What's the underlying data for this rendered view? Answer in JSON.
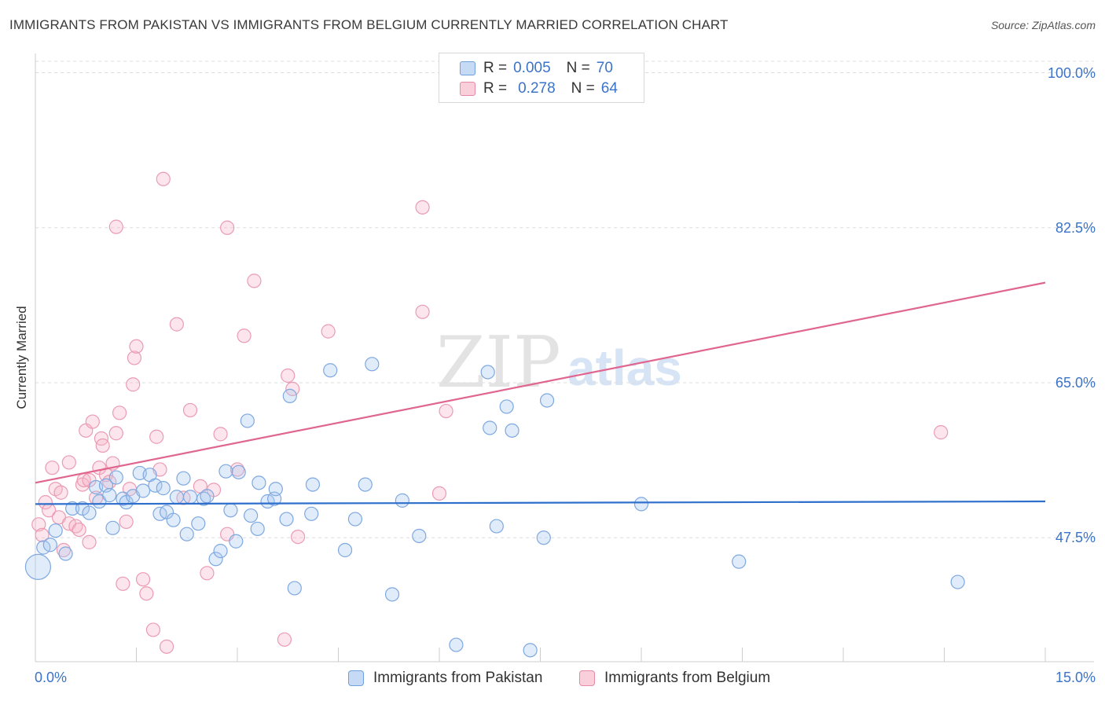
{
  "chart_data": {
    "type": "scatter",
    "title": "IMMIGRANTS FROM PAKISTAN VS IMMIGRANTS FROM BELGIUM CURRENTLY MARRIED CORRELATION CHART",
    "source": "Source: ZipAtlas.com",
    "xlabel": "",
    "ylabel": "Currently Married",
    "xlim": [
      0,
      15
    ],
    "ylim": [
      33.5,
      102
    ],
    "x_tick_labels": {
      "min": "0.0%",
      "max": "15.0%"
    },
    "y_ticks": [
      {
        "value": 100,
        "label": "100.0%"
      },
      {
        "value": 82.5,
        "label": "82.5%"
      },
      {
        "value": 65,
        "label": "65.0%"
      },
      {
        "value": 47.5,
        "label": "47.5%"
      }
    ],
    "watermark": {
      "part1": "ZIP",
      "part2": "atlas"
    },
    "legend": {
      "r_label": "R =",
      "n_label": "N =",
      "entries": [
        {
          "name": "Immigrants from Pakistan",
          "r": "0.005",
          "n": "70",
          "fill": "#c6d9f5",
          "stroke": "#6f9fdc"
        },
        {
          "name": "Immigrants from Belgium",
          "r": "0.278",
          "n": "64",
          "fill": "#f9cfdc",
          "stroke": "#e68aa8"
        }
      ]
    },
    "series": [
      {
        "name": "Immigrants from Pakistan",
        "color": "#7ea8e0",
        "fill": "rgba(170,200,240,0.35)",
        "trend_color": "#2f6fcc",
        "trend": {
          "x": [
            0,
            15
          ],
          "y": [
            51.3,
            51.6
          ]
        },
        "points": [
          {
            "x": 0.04,
            "y": 44.2,
            "big": true
          },
          {
            "x": 0.12,
            "y": 46.4
          },
          {
            "x": 0.22,
            "y": 46.7
          },
          {
            "x": 0.3,
            "y": 48.3
          },
          {
            "x": 0.45,
            "y": 45.7
          },
          {
            "x": 0.55,
            "y": 50.8
          },
          {
            "x": 0.7,
            "y": 50.8
          },
          {
            "x": 0.8,
            "y": 50.3
          },
          {
            "x": 0.9,
            "y": 53.2
          },
          {
            "x": 0.95,
            "y": 51.6
          },
          {
            "x": 1.05,
            "y": 53.4
          },
          {
            "x": 1.1,
            "y": 52.3
          },
          {
            "x": 1.15,
            "y": 48.6
          },
          {
            "x": 1.2,
            "y": 54.3
          },
          {
            "x": 1.3,
            "y": 51.9
          },
          {
            "x": 1.35,
            "y": 51.5
          },
          {
            "x": 1.45,
            "y": 52.2
          },
          {
            "x": 1.55,
            "y": 54.8
          },
          {
            "x": 1.6,
            "y": 52.8
          },
          {
            "x": 1.7,
            "y": 54.6
          },
          {
            "x": 1.78,
            "y": 53.4
          },
          {
            "x": 1.85,
            "y": 50.2
          },
          {
            "x": 1.9,
            "y": 53.1
          },
          {
            "x": 1.95,
            "y": 50.4
          },
          {
            "x": 2.05,
            "y": 49.5
          },
          {
            "x": 2.1,
            "y": 52.1
          },
          {
            "x": 2.2,
            "y": 54.2
          },
          {
            "x": 2.25,
            "y": 47.9
          },
          {
            "x": 2.3,
            "y": 52.1
          },
          {
            "x": 2.42,
            "y": 49.1
          },
          {
            "x": 2.5,
            "y": 51.9
          },
          {
            "x": 2.55,
            "y": 52.2
          },
          {
            "x": 2.68,
            "y": 45.1
          },
          {
            "x": 2.75,
            "y": 46.0
          },
          {
            "x": 2.83,
            "y": 55.0
          },
          {
            "x": 2.9,
            "y": 50.6
          },
          {
            "x": 2.98,
            "y": 47.1
          },
          {
            "x": 3.02,
            "y": 54.9
          },
          {
            "x": 3.15,
            "y": 60.7
          },
          {
            "x": 3.2,
            "y": 50.0
          },
          {
            "x": 3.3,
            "y": 48.5
          },
          {
            "x": 3.32,
            "y": 53.7
          },
          {
            "x": 3.45,
            "y": 51.6
          },
          {
            "x": 3.55,
            "y": 51.9
          },
          {
            "x": 3.57,
            "y": 53.0
          },
          {
            "x": 3.73,
            "y": 49.6
          },
          {
            "x": 3.78,
            "y": 63.5
          },
          {
            "x": 3.85,
            "y": 41.8
          },
          {
            "x": 4.1,
            "y": 50.2
          },
          {
            "x": 4.12,
            "y": 53.5
          },
          {
            "x": 4.38,
            "y": 66.4
          },
          {
            "x": 4.6,
            "y": 46.1
          },
          {
            "x": 4.75,
            "y": 49.6
          },
          {
            "x": 4.9,
            "y": 53.5
          },
          {
            "x": 5.0,
            "y": 67.1
          },
          {
            "x": 5.3,
            "y": 41.1
          },
          {
            "x": 5.45,
            "y": 51.7
          },
          {
            "x": 5.7,
            "y": 47.7
          },
          {
            "x": 6.25,
            "y": 35.4
          },
          {
            "x": 6.75,
            "y": 59.9
          },
          {
            "x": 6.85,
            "y": 48.8
          },
          {
            "x": 6.72,
            "y": 66.2
          },
          {
            "x": 7.0,
            "y": 62.3
          },
          {
            "x": 7.08,
            "y": 59.6
          },
          {
            "x": 7.35,
            "y": 34.8
          },
          {
            "x": 7.55,
            "y": 47.5
          },
          {
            "x": 7.6,
            "y": 63.0
          },
          {
            "x": 9.0,
            "y": 51.3
          },
          {
            "x": 10.45,
            "y": 44.8
          },
          {
            "x": 13.7,
            "y": 42.5
          }
        ]
      },
      {
        "name": "Immigrants from Belgium",
        "color": "#eb9bb4",
        "fill": "rgba(245,180,200,0.35)",
        "trend_color": "#e0668f",
        "trend": {
          "x": [
            0,
            15
          ],
          "y": [
            53.7,
            76.3
          ]
        },
        "points": [
          {
            "x": 0.05,
            "y": 49.0
          },
          {
            "x": 0.1,
            "y": 47.8
          },
          {
            "x": 0.15,
            "y": 51.5
          },
          {
            "x": 0.2,
            "y": 50.6
          },
          {
            "x": 0.25,
            "y": 55.4
          },
          {
            "x": 0.3,
            "y": 53.0
          },
          {
            "x": 0.35,
            "y": 49.8
          },
          {
            "x": 0.38,
            "y": 52.6
          },
          {
            "x": 0.42,
            "y": 46.1
          },
          {
            "x": 0.5,
            "y": 49.1
          },
          {
            "x": 0.5,
            "y": 56.0
          },
          {
            "x": 0.6,
            "y": 48.8
          },
          {
            "x": 0.65,
            "y": 48.4
          },
          {
            "x": 0.7,
            "y": 53.5
          },
          {
            "x": 0.72,
            "y": 54.0
          },
          {
            "x": 0.75,
            "y": 59.6
          },
          {
            "x": 0.8,
            "y": 47.0
          },
          {
            "x": 0.8,
            "y": 54.0
          },
          {
            "x": 0.85,
            "y": 60.6
          },
          {
            "x": 0.9,
            "y": 52.0
          },
          {
            "x": 0.95,
            "y": 55.4
          },
          {
            "x": 0.98,
            "y": 58.7
          },
          {
            "x": 1.0,
            "y": 57.9
          },
          {
            "x": 1.05,
            "y": 54.6
          },
          {
            "x": 1.1,
            "y": 53.8
          },
          {
            "x": 1.15,
            "y": 55.9
          },
          {
            "x": 1.2,
            "y": 59.3
          },
          {
            "x": 1.2,
            "y": 82.6
          },
          {
            "x": 1.25,
            "y": 61.6
          },
          {
            "x": 1.3,
            "y": 42.3
          },
          {
            "x": 1.35,
            "y": 49.3
          },
          {
            "x": 1.4,
            "y": 53.0
          },
          {
            "x": 1.45,
            "y": 64.8
          },
          {
            "x": 1.47,
            "y": 67.8
          },
          {
            "x": 1.5,
            "y": 69.1
          },
          {
            "x": 1.6,
            "y": 42.8
          },
          {
            "x": 1.65,
            "y": 41.2
          },
          {
            "x": 1.75,
            "y": 37.1
          },
          {
            "x": 1.8,
            "y": 58.9
          },
          {
            "x": 1.85,
            "y": 55.2
          },
          {
            "x": 1.9,
            "y": 88.0
          },
          {
            "x": 1.95,
            "y": 35.2
          },
          {
            "x": 2.1,
            "y": 71.6
          },
          {
            "x": 2.2,
            "y": 52.0
          },
          {
            "x": 2.3,
            "y": 61.9
          },
          {
            "x": 2.45,
            "y": 53.3
          },
          {
            "x": 2.55,
            "y": 43.5
          },
          {
            "x": 2.65,
            "y": 52.9
          },
          {
            "x": 2.75,
            "y": 59.2
          },
          {
            "x": 2.85,
            "y": 82.5
          },
          {
            "x": 3.0,
            "y": 55.2
          },
          {
            "x": 3.1,
            "y": 70.3
          },
          {
            "x": 3.25,
            "y": 76.5
          },
          {
            "x": 3.75,
            "y": 65.8
          },
          {
            "x": 3.82,
            "y": 64.3
          },
          {
            "x": 3.9,
            "y": 47.6
          },
          {
            "x": 3.7,
            "y": 36.0
          },
          {
            "x": 4.35,
            "y": 70.8
          },
          {
            "x": 5.75,
            "y": 84.8
          },
          {
            "x": 5.75,
            "y": 73.0
          },
          {
            "x": 6.0,
            "y": 52.5
          },
          {
            "x": 6.1,
            "y": 61.8
          },
          {
            "x": 13.45,
            "y": 59.4
          },
          {
            "x": 2.85,
            "y": 47.9
          }
        ]
      }
    ]
  }
}
